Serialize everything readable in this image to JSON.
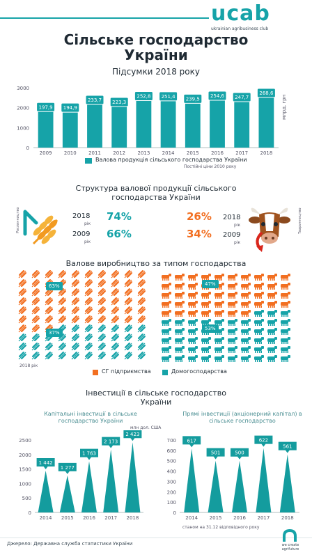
{
  "brand": {
    "logo_text": "ucab",
    "tagline": "ukrainian agribusiness club",
    "footer_tagline": "we create agrifuture"
  },
  "title": "Сільське господарство України",
  "subtitle": "Підсумки 2018 року",
  "gross_output": {
    "legend": "Валова продукція сільського господарства України",
    "note": "Постійні ціни 2010 року",
    "unit": "млрд. грн"
  },
  "structure": {
    "title": "Структура валової продукції сільського господарства України",
    "crop_label": "Рослинництво",
    "livestock_label": "Тваринництво",
    "year_suffix": "рік",
    "crop": [
      {
        "year": "2018",
        "value": "74%"
      },
      {
        "year": "2009",
        "value": "66%"
      }
    ],
    "livestock": [
      {
        "year": "2018",
        "value": "26%"
      },
      {
        "year": "2009",
        "value": "34%"
      }
    ]
  },
  "farm_type": {
    "title": "Валове виробництво за типом господарства",
    "year_note": "2018 рік",
    "legend_enterprises": "СГ підприємства",
    "legend_households": "Домогосподарства",
    "crop_enterprises": "63%",
    "crop_households": "37%",
    "livestock_enterprises": "47%",
    "livestock_households": "53%"
  },
  "investment": {
    "title": "Інвестиції в сільське господарство України",
    "capital_title": "Капітальні інвестиції в сільське господарство України",
    "fdi_title": "Прямі інвестиції (акціонерний капітал) в сільське господарство",
    "unit": "млн дол. США",
    "fdi_note": "станом на 31.12 відповідного року"
  },
  "source": "Джерело: Державна служба статистики України",
  "colors": {
    "teal": "#16a3a8",
    "orange": "#f26f21",
    "dark": "#1f2a33",
    "red": "#d9261c"
  },
  "chart_data": [
    {
      "type": "bar",
      "categories": [
        "2009",
        "2010",
        "2011",
        "2012",
        "2013",
        "2014",
        "2015",
        "2016",
        "2017",
        "2018"
      ],
      "values": [
        197.9,
        194.9,
        233.7,
        223.3,
        252.8,
        251.4,
        239.5,
        254.6,
        247.7,
        268.6
      ],
      "value_labels": [
        "197,9",
        "194,9",
        "233,7",
        "223,3",
        "252,8",
        "251,4",
        "239,5",
        "254,6",
        "247,7",
        "268,6"
      ],
      "ylabel": "млрд. грн",
      "ylim": [
        0,
        3000
      ],
      "yticks": [
        "0",
        "1000",
        "2000",
        "3000"
      ],
      "series_name": "Валова продукція сільського господарства України",
      "grid": false
    },
    {
      "type": "bar",
      "categories": [
        "2014",
        "2015",
        "2016",
        "2017",
        "2018"
      ],
      "values": [
        1442,
        1277,
        1763,
        2173,
        2423
      ],
      "value_labels": [
        "1 442",
        "1 277",
        "1 763",
        "2 173",
        "2 423"
      ],
      "ylim": [
        0,
        2500
      ],
      "yticks": [
        "0",
        "500",
        "1000",
        "1500",
        "2000",
        "2500"
      ],
      "title": "Капітальні інвестиції в сільське господарство України"
    },
    {
      "type": "bar",
      "categories": [
        "2014",
        "2015",
        "2016",
        "2017",
        "2018"
      ],
      "values": [
        617,
        501,
        500,
        622,
        561
      ],
      "value_labels": [
        "617",
        "501",
        "500",
        "622",
        "561"
      ],
      "ylim": [
        0,
        700
      ],
      "yticks": [
        "0",
        "100",
        "200",
        "300",
        "400",
        "500",
        "600",
        "700"
      ],
      "title": "Прямі інвестиції (акціонерний капітал) в сільське господарство"
    }
  ]
}
